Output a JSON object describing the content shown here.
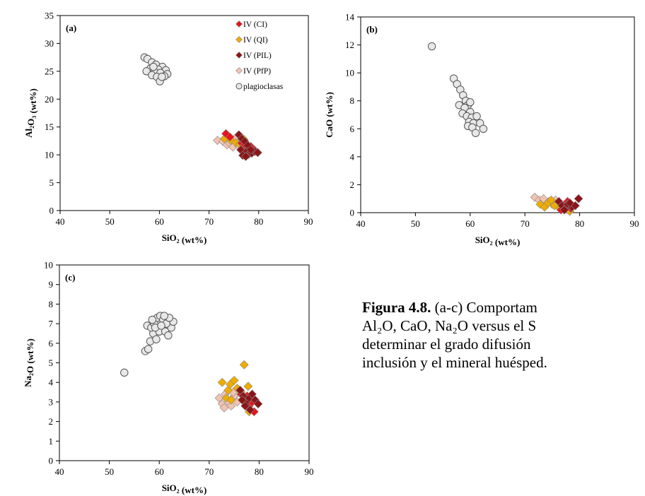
{
  "chart_data": [
    {
      "id": "a",
      "type": "scatter",
      "panel_label": "(a)",
      "xlabel": "SiO2 (wt%)",
      "ylabel": "Al2O3 (wt%)",
      "xlim": [
        40,
        90
      ],
      "ylim": [
        0,
        35
      ],
      "xticks": [
        40,
        50,
        60,
        70,
        80,
        90
      ],
      "yticks": [
        0,
        5,
        10,
        15,
        20,
        25,
        30,
        35
      ],
      "legend_position": "top-right",
      "series": [
        {
          "name": "IV (CI)",
          "marker": "diamond",
          "color": "#e8131b",
          "points": [
            [
              73.4,
              13.8
            ],
            [
              74.2,
              13.2
            ],
            [
              76.6,
              12.1
            ],
            [
              77.2,
              11.8
            ],
            [
              78.4,
              11.5
            ],
            [
              79.1,
              10.9
            ],
            [
              77.8,
              10.6
            ]
          ]
        },
        {
          "name": "IV (QI)",
          "marker": "diamond",
          "color": "#f0ac00",
          "points": [
            [
              73.1,
              12.9
            ],
            [
              74.4,
              12.6
            ],
            [
              75.4,
              12.2
            ],
            [
              76.2,
              11.9
            ],
            [
              77.0,
              12.8
            ],
            [
              77.6,
              11.6
            ],
            [
              78.2,
              11.2
            ],
            [
              76.6,
              11.0
            ]
          ]
        },
        {
          "name": "IV (PIL)",
          "marker": "diamond",
          "color": "#8b1418",
          "points": [
            [
              76.0,
              13.6
            ],
            [
              76.6,
              12.9
            ],
            [
              77.2,
              12.4
            ],
            [
              77.8,
              11.7
            ],
            [
              76.4,
              10.9
            ],
            [
              77.6,
              10.6
            ],
            [
              78.0,
              10.1
            ],
            [
              78.6,
              10.3
            ],
            [
              79.2,
              10.6
            ],
            [
              79.8,
              10.4
            ],
            [
              76.8,
              9.9
            ],
            [
              77.4,
              9.7
            ],
            [
              78.4,
              10.9
            ]
          ]
        },
        {
          "name": "IV (PfP)",
          "marker": "diamond",
          "color": "#f2c3b0",
          "points": [
            [
              71.7,
              12.6
            ],
            [
              72.8,
              12.4
            ],
            [
              73.6,
              11.8
            ],
            [
              74.2,
              12.1
            ],
            [
              74.8,
              11.4
            ],
            [
              75.4,
              12.3
            ],
            [
              75.2,
              12.9
            ],
            [
              76.0,
              11.6
            ]
          ]
        },
        {
          "name": "plagioclasas",
          "marker": "circle",
          "color": "#e8e8e8",
          "points": [
            [
              57.0,
              27.5
            ],
            [
              57.6,
              27.2
            ],
            [
              58.5,
              26.6
            ],
            [
              59.3,
              26.2
            ],
            [
              60.6,
              25.8
            ],
            [
              58.2,
              25.5
            ],
            [
              59.8,
              25.3
            ],
            [
              61.3,
              25.2
            ],
            [
              57.4,
              25.0
            ],
            [
              59.0,
              24.9
            ],
            [
              60.2,
              24.7
            ],
            [
              61.6,
              24.5
            ],
            [
              58.5,
              24.3
            ],
            [
              59.5,
              24.0
            ],
            [
              61.0,
              24.1
            ],
            [
              60.1,
              23.2
            ],
            [
              58.8,
              25.8
            ],
            [
              60.5,
              24.0
            ]
          ]
        }
      ]
    },
    {
      "id": "b",
      "type": "scatter",
      "panel_label": "(b)",
      "xlabel": "SiO2 (wt%)",
      "ylabel": "CaO (wt%)",
      "xlim": [
        40,
        90
      ],
      "ylim": [
        0,
        14
      ],
      "xticks": [
        40,
        50,
        60,
        70,
        80,
        90
      ],
      "yticks": [
        0,
        2,
        4,
        6,
        8,
        10,
        12,
        14
      ],
      "series": [
        {
          "name": "IV (CI)",
          "marker": "diamond",
          "color": "#e8131b",
          "points": [
            [
              77.0,
              0.5
            ],
            [
              77.8,
              0.8
            ],
            [
              78.4,
              0.3
            ],
            [
              76.6,
              0.2
            ]
          ]
        },
        {
          "name": "IV (QI)",
          "marker": "diamond",
          "color": "#f0ac00",
          "points": [
            [
              72.8,
              0.6
            ],
            [
              73.6,
              0.4
            ],
            [
              74.2,
              0.7
            ],
            [
              74.8,
              0.9
            ],
            [
              75.4,
              0.5
            ],
            [
              78.2,
              0.1
            ],
            [
              76.4,
              0.3
            ]
          ]
        },
        {
          "name": "IV (PIL)",
          "marker": "diamond",
          "color": "#8b1418",
          "points": [
            [
              76.2,
              0.8
            ],
            [
              76.8,
              0.5
            ],
            [
              77.4,
              0.3
            ],
            [
              77.8,
              0.6
            ],
            [
              78.6,
              0.4
            ],
            [
              79.2,
              0.5
            ],
            [
              79.8,
              1.0
            ],
            [
              77.2,
              0.2
            ],
            [
              78.2,
              0.7
            ]
          ]
        },
        {
          "name": "IV (PfP)",
          "marker": "diamond",
          "color": "#f2c3b0",
          "points": [
            [
              71.8,
              1.1
            ],
            [
              72.6,
              0.9
            ],
            [
              73.4,
              1.0
            ],
            [
              74.4,
              0.8
            ],
            [
              75.0,
              0.6
            ],
            [
              75.6,
              0.9
            ]
          ]
        },
        {
          "name": "plagioclasas",
          "marker": "circle",
          "color": "#e8e8e8",
          "points": [
            [
              53.0,
              11.9
            ],
            [
              57.0,
              9.6
            ],
            [
              57.6,
              9.2
            ],
            [
              58.2,
              8.8
            ],
            [
              58.7,
              8.4
            ],
            [
              59.2,
              8.0
            ],
            [
              59.6,
              7.7
            ],
            [
              58.0,
              7.7
            ],
            [
              59.0,
              7.5
            ],
            [
              60.0,
              7.2
            ],
            [
              58.6,
              7.1
            ],
            [
              59.4,
              6.9
            ],
            [
              60.3,
              6.8
            ],
            [
              61.2,
              6.9
            ],
            [
              59.8,
              6.5
            ],
            [
              60.6,
              6.4
            ],
            [
              61.8,
              6.4
            ],
            [
              59.6,
              6.2
            ],
            [
              60.4,
              6.1
            ],
            [
              62.4,
              6.0
            ],
            [
              61.0,
              5.7
            ],
            [
              60.0,
              7.9
            ]
          ]
        }
      ]
    },
    {
      "id": "c",
      "type": "scatter",
      "panel_label": "(c)",
      "xlabel": "SiO2 (wt%)",
      "ylabel": "Na2O (wt%)",
      "xlim": [
        40,
        90
      ],
      "ylim": [
        0,
        10
      ],
      "xticks": [
        40,
        50,
        60,
        70,
        80,
        90
      ],
      "yticks": [
        0,
        1,
        2,
        3,
        4,
        5,
        6,
        7,
        8,
        9,
        10
      ],
      "series": [
        {
          "name": "IV (CI)",
          "marker": "diamond",
          "color": "#e8131b",
          "points": [
            [
              76.4,
              3.4
            ],
            [
              77.2,
              3.1
            ],
            [
              78.0,
              2.8
            ],
            [
              78.6,
              3.0
            ],
            [
              79.0,
              2.5
            ],
            [
              77.6,
              3.3
            ]
          ]
        },
        {
          "name": "IV (QI)",
          "marker": "diamond",
          "color": "#f0ac00",
          "points": [
            [
              72.6,
              4.0
            ],
            [
              73.8,
              3.6
            ],
            [
              74.2,
              3.9
            ],
            [
              75.0,
              4.1
            ],
            [
              75.6,
              3.7
            ],
            [
              76.4,
              3.5
            ],
            [
              77.0,
              4.9
            ],
            [
              77.8,
              3.8
            ],
            [
              78.0,
              2.5
            ],
            [
              73.4,
              3.2
            ],
            [
              74.4,
              3.1
            ]
          ]
        },
        {
          "name": "IV (PIL)",
          "marker": "diamond",
          "color": "#8b1418",
          "points": [
            [
              76.2,
              3.6
            ],
            [
              76.8,
              3.3
            ],
            [
              77.4,
              3.0
            ],
            [
              78.0,
              3.2
            ],
            [
              78.6,
              3.4
            ],
            [
              79.2,
              3.1
            ],
            [
              79.8,
              2.9
            ],
            [
              77.2,
              2.8
            ],
            [
              78.2,
              2.6
            ],
            [
              76.6,
              3.1
            ]
          ]
        },
        {
          "name": "IV (PfP)",
          "marker": "diamond",
          "color": "#f2c3b0",
          "points": [
            [
              72.0,
              3.2
            ],
            [
              72.6,
              2.9
            ],
            [
              73.2,
              3.4
            ],
            [
              73.8,
              3.0
            ],
            [
              74.4,
              2.8
            ],
            [
              75.0,
              3.3
            ],
            [
              75.6,
              3.0
            ],
            [
              76.0,
              3.6
            ],
            [
              73.0,
              2.7
            ],
            [
              74.8,
              3.5
            ]
          ]
        },
        {
          "name": "plagioclasas",
          "marker": "circle",
          "color": "#e8e8e8",
          "points": [
            [
              53.0,
              4.5
            ],
            [
              57.2,
              5.6
            ],
            [
              57.8,
              5.7
            ],
            [
              58.2,
              6.1
            ],
            [
              58.8,
              6.5
            ],
            [
              59.4,
              6.2
            ],
            [
              60.0,
              6.6
            ],
            [
              60.6,
              6.9
            ],
            [
              61.2,
              6.6
            ],
            [
              61.8,
              6.4
            ],
            [
              62.4,
              6.8
            ],
            [
              62.8,
              7.1
            ],
            [
              57.6,
              6.9
            ],
            [
              58.4,
              6.8
            ],
            [
              59.0,
              7.0
            ],
            [
              59.6,
              7.3
            ],
            [
              60.2,
              7.4
            ],
            [
              60.8,
              7.2
            ],
            [
              61.4,
              7.0
            ],
            [
              62.0,
              7.3
            ],
            [
              59.2,
              6.8
            ],
            [
              60.4,
              6.9
            ],
            [
              61.0,
              7.4
            ],
            [
              58.6,
              7.2
            ]
          ]
        }
      ]
    }
  ],
  "caption": {
    "figure_label": "Figura 4.8.",
    "line1_rest": " (a-c) Comportam",
    "line2": "Al₂O, CaO, Na₂O versus el S",
    "line3": "determinar el grado difusión",
    "line4": "inclusión y el mineral huésped."
  }
}
